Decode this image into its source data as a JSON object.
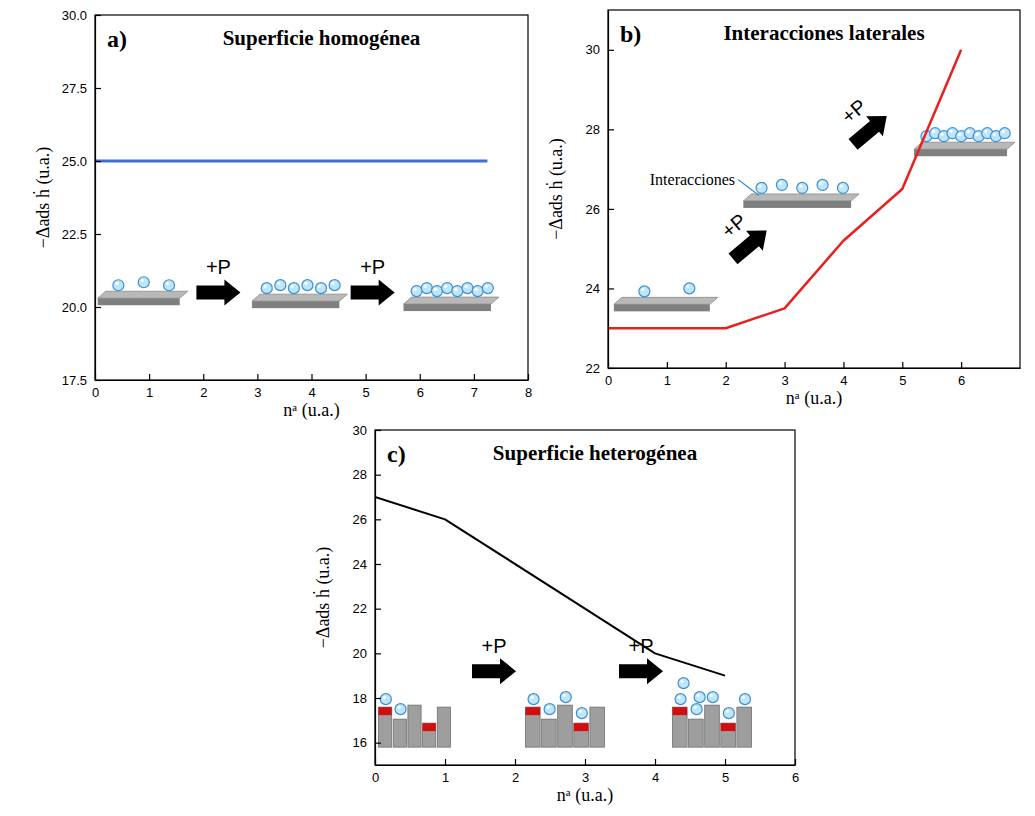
{
  "chart_data": [
    {
      "type": "line",
      "panel_label": "a)",
      "title": "Superficie homogénea",
      "x_label": "nᵃ (u.a.)",
      "y_label": "−Δads ḣ (u.a.)",
      "x": [
        0,
        7.25
      ],
      "series": [
        {
          "color": "#3f6fcf",
          "values": [
            25,
            25
          ]
        }
      ],
      "xlim": [
        0,
        8
      ],
      "xticks": [
        0,
        1,
        2,
        3,
        4,
        5,
        6,
        7,
        8
      ],
      "ylim": [
        17.5,
        30
      ],
      "yticks": [
        17.5,
        {
          "value": 20,
          "label": "20.0"
        },
        22.5,
        {
          "value": 25,
          "label": "25.0"
        },
        27.5,
        {
          "value": 30,
          "label": "30.0"
        }
      ],
      "annotations": [
        {
          "text": "+P",
          "x": 2.28,
          "y": 20.5
        },
        {
          "text": "+P",
          "x": 5.13,
          "y": 20.5
        }
      ]
    },
    {
      "type": "line",
      "panel_label": "b)",
      "title": "Interacciones laterales",
      "x_label": "nᵃ (u.a.)",
      "y_label": "−Δads ḣ (u.a.)",
      "x": [
        0,
        2,
        3,
        4,
        5,
        6
      ],
      "series": [
        {
          "color": "#e8201e",
          "values": [
            23,
            23,
            23.5,
            25.2,
            26.5,
            30
          ]
        }
      ],
      "xlim": [
        0,
        7
      ],
      "xticks": [
        0,
        1,
        2,
        3,
        4,
        5,
        6
      ],
      "ylim": [
        22,
        31
      ],
      "yticks": [
        22,
        24,
        26,
        28,
        30
      ],
      "annotations": [
        {
          "text": "+P",
          "x": 2.41,
          "y": 25.1
        },
        {
          "text": "+P",
          "x": 4.45,
          "y": 27.98
        }
      ],
      "callouts": [
        {
          "text": "Interacciones",
          "x": 0.71,
          "y": 26.6
        }
      ]
    },
    {
      "type": "line",
      "panel_label": "c)",
      "title": "Superficie heterogénea",
      "x_label": "nᵃ (u.a.)",
      "y_label": "−Δads ḣ (u.a.)",
      "x": [
        0,
        1,
        4,
        5
      ],
      "series": [
        {
          "color": "#000000",
          "values": [
            27,
            26,
            20,
            19
          ]
        }
      ],
      "xlim": [
        0,
        6
      ],
      "xticks": [
        0,
        1,
        2,
        3,
        4,
        5,
        6
      ],
      "ylim": [
        15,
        30
      ],
      "yticks": [
        16,
        18,
        20,
        22,
        24,
        26,
        28,
        30
      ],
      "annotations": [
        {
          "text": "+P",
          "x": 1.7,
          "y": 19.2
        },
        {
          "text": "+P",
          "x": 3.8,
          "y": 19.2
        }
      ]
    }
  ]
}
